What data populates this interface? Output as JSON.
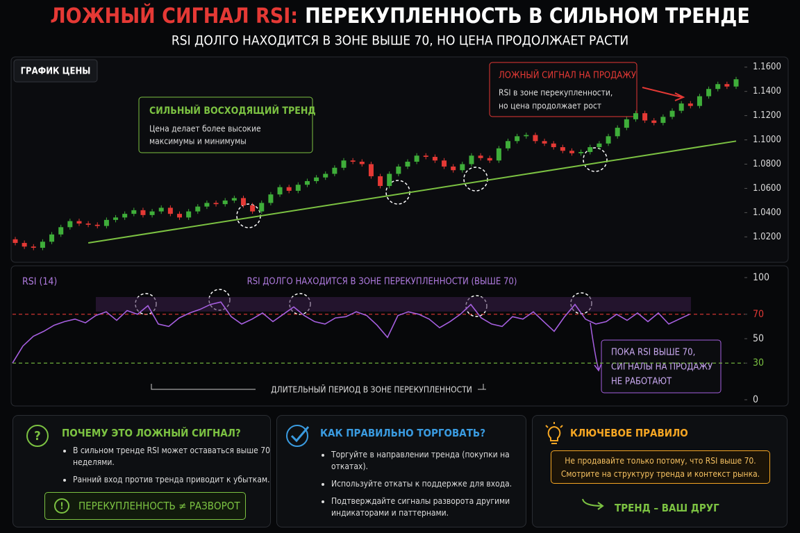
{
  "header": {
    "title_accent": "ЛОЖНЫЙ СИГНАЛ RSI:",
    "title_rest": "ПЕРЕКУПЛЕННОСТЬ В СИЛЬНОМ ТРЕНДЕ",
    "subtitle": "RSI ДОЛГО НАХОДИТСЯ В ЗОНЕ ВЫШЕ 70, НО ЦЕНА ПРОДОЛЖАЕТ РАСТИ"
  },
  "chart_data": [
    {
      "type": "candlestick",
      "title": "ГРАФИК ЦЕНЫ",
      "up_color": "#3fae3a",
      "down_color": "#e53935",
      "open": [
        1.018,
        1.015,
        1.012,
        1.011,
        1.016,
        1.022,
        1.028,
        1.033,
        1.031,
        1.03,
        1.029,
        1.034,
        1.036,
        1.039,
        1.042,
        1.038,
        1.041,
        1.044,
        1.039,
        1.036,
        1.041,
        1.045,
        1.048,
        1.047,
        1.05,
        1.052,
        1.046,
        1.041,
        1.048,
        1.055,
        1.061,
        1.058,
        1.063,
        1.066,
        1.069,
        1.072,
        1.077,
        1.083,
        1.082,
        1.08,
        1.07,
        1.062,
        1.072,
        1.078,
        1.082,
        1.087,
        1.086,
        1.083,
        1.078,
        1.075,
        1.08,
        1.087,
        1.085,
        1.083,
        1.093,
        1.099,
        1.103,
        1.104,
        1.099,
        1.097,
        1.094,
        1.091,
        1.089,
        1.09,
        1.094,
        1.097,
        1.103,
        1.11,
        1.117,
        1.122,
        1.116,
        1.114,
        1.119,
        1.124,
        1.13,
        1.128,
        1.136,
        1.142,
        1.146,
        1.144
      ],
      "high": [
        1.02,
        1.017,
        1.014,
        1.018,
        1.024,
        1.03,
        1.035,
        1.035,
        1.033,
        1.032,
        1.036,
        1.038,
        1.041,
        1.044,
        1.044,
        1.043,
        1.046,
        1.046,
        1.041,
        1.043,
        1.047,
        1.05,
        1.05,
        1.052,
        1.054,
        1.054,
        1.048,
        1.05,
        1.057,
        1.063,
        1.063,
        1.065,
        1.068,
        1.071,
        1.074,
        1.079,
        1.085,
        1.085,
        1.084,
        1.082,
        1.072,
        1.074,
        1.08,
        1.084,
        1.089,
        1.089,
        1.088,
        1.085,
        1.08,
        1.082,
        1.089,
        1.089,
        1.087,
        1.095,
        1.101,
        1.105,
        1.106,
        1.106,
        1.101,
        1.099,
        1.096,
        1.093,
        1.092,
        1.096,
        1.099,
        1.105,
        1.112,
        1.119,
        1.124,
        1.124,
        1.118,
        1.121,
        1.126,
        1.132,
        1.132,
        1.138,
        1.144,
        1.148,
        1.148,
        1.152
      ],
      "low": [
        1.013,
        1.01,
        1.009,
        1.009,
        1.014,
        1.02,
        1.026,
        1.029,
        1.028,
        1.027,
        1.027,
        1.032,
        1.034,
        1.037,
        1.036,
        1.036,
        1.039,
        1.037,
        1.034,
        1.034,
        1.039,
        1.043,
        1.045,
        1.045,
        1.048,
        1.044,
        1.039,
        1.039,
        1.046,
        1.053,
        1.056,
        1.056,
        1.061,
        1.064,
        1.067,
        1.07,
        1.075,
        1.08,
        1.078,
        1.068,
        1.06,
        1.06,
        1.07,
        1.076,
        1.08,
        1.084,
        1.081,
        1.076,
        1.073,
        1.073,
        1.078,
        1.083,
        1.081,
        1.081,
        1.091,
        1.097,
        1.101,
        1.097,
        1.095,
        1.092,
        1.089,
        1.087,
        1.087,
        1.088,
        1.092,
        1.095,
        1.101,
        1.108,
        1.115,
        1.114,
        1.112,
        1.112,
        1.117,
        1.122,
        1.126,
        1.126,
        1.134,
        1.14,
        1.142,
        1.142
      ],
      "close": [
        1.015,
        1.012,
        1.011,
        1.016,
        1.022,
        1.028,
        1.033,
        1.031,
        1.03,
        1.029,
        1.034,
        1.036,
        1.039,
        1.042,
        1.038,
        1.041,
        1.044,
        1.039,
        1.036,
        1.041,
        1.045,
        1.048,
        1.047,
        1.05,
        1.052,
        1.046,
        1.041,
        1.048,
        1.055,
        1.061,
        1.058,
        1.063,
        1.066,
        1.069,
        1.072,
        1.077,
        1.083,
        1.082,
        1.08,
        1.07,
        1.062,
        1.072,
        1.078,
        1.082,
        1.087,
        1.086,
        1.083,
        1.078,
        1.075,
        1.08,
        1.087,
        1.085,
        1.083,
        1.093,
        1.099,
        1.103,
        1.104,
        1.099,
        1.097,
        1.094,
        1.091,
        1.089,
        1.09,
        1.094,
        1.097,
        1.103,
        1.11,
        1.117,
        1.122,
        1.116,
        1.114,
        1.119,
        1.124,
        1.13,
        1.128,
        1.136,
        1.142,
        1.146,
        1.144,
        1.15
      ],
      "ylim": [
        0.999,
        1.165
      ],
      "yticks": [
        {
          "value": 1.02,
          "label": "1.0200"
        },
        {
          "value": 1.04,
          "label": "1.0400"
        },
        {
          "value": 1.06,
          "label": "1.0600"
        },
        {
          "value": 1.08,
          "label": "1.0800"
        },
        {
          "value": 1.1,
          "label": "1.1000"
        },
        {
          "value": 1.12,
          "label": "1.1200"
        },
        {
          "value": 1.14,
          "label": "1.1400"
        },
        {
          "value": 1.16,
          "label": "1.1600"
        }
      ],
      "trend_line": {
        "x": [
          8,
          79
        ],
        "values": [
          1.015,
          1.099
        ],
        "color": "#7cc242"
      },
      "annotations": [
        {
          "title": "СИЛЬНЫЙ ВОСХОДЯЩИЙ ТРЕНД",
          "lines": [
            "Цена делает более высокие",
            "максимумы и минимумы"
          ],
          "color": "#7cc242"
        },
        {
          "title": "ЛОЖНЫЙ СИГНАЛ НА ПРОДАЖУ",
          "lines": [
            "RSI в зоне перекупленности,",
            "но цена продолжает рост"
          ],
          "color": "#e53935"
        }
      ]
    },
    {
      "type": "line",
      "title": "RSI (14)",
      "color": "#a65fe0",
      "values": [
        30,
        44,
        52,
        56,
        61,
        64,
        66,
        63,
        69,
        72,
        65,
        73,
        70,
        77,
        62,
        60,
        67,
        71,
        74,
        78,
        80,
        68,
        62,
        66,
        71,
        64,
        70,
        76,
        69,
        64,
        62,
        67,
        68,
        72,
        69,
        61,
        51,
        69,
        72,
        70,
        66,
        59,
        64,
        70,
        78,
        67,
        62,
        60,
        68,
        66,
        72,
        64,
        56,
        68,
        78,
        66,
        62,
        64,
        70,
        65,
        71,
        64,
        71,
        62,
        66,
        70
      ],
      "ylim": [
        0,
        100
      ],
      "yticks": [
        0,
        30,
        50,
        70,
        100
      ],
      "level_lines": [
        {
          "value": 70,
          "color": "#e53935"
        },
        {
          "value": 30,
          "color": "#7cc242"
        }
      ],
      "annotation": "RSI ДОЛГО НАХОДИТСЯ В ЗОНЕ ПЕРЕКУПЛЕННОСТИ (ВЫШЕ 70)",
      "period_label": "ДЛИТЕЛЬНЫЙ ПЕРИОД В ЗОНЕ ПЕРЕКУПЛЕННОСТИ",
      "note_lines": [
        "ПОКА RSI ВЫШЕ 70,",
        "СИГНАЛЫ НА ПРОДАЖУ",
        "НЕ РАБОТАЮТ"
      ]
    }
  ],
  "panels": [
    {
      "title": "ПОЧЕМУ ЭТО ЛОЖНЫЙ СИГНАЛ?",
      "items": [
        "В сильном тренде RSI может оставаться выше 70 неделями.",
        "Ранний вход против тренда приводит к убыткам."
      ],
      "badge": "ПЕРЕКУПЛЕННОСТЬ ≠ РАЗВОРОТ"
    },
    {
      "title": "КАК ПРАВИЛЬНО ТОРГОВАТЬ?",
      "items": [
        "Торгуйте в направлении тренда (покупки на откатах).",
        "Используйте откаты к поддержке для входа.",
        "Подтверждайте сигналы разворота другими индикаторами и паттернами."
      ]
    },
    {
      "title": "КЛЮЧЕВОЕ ПРАВИЛО",
      "rule_lines": [
        "Не продавайте только потому, что RSI выше 70.",
        "Смотрите на структуру тренда и контекст рынка."
      ],
      "footer": "ТРЕНД – ВАШ ДРУГ"
    }
  ]
}
